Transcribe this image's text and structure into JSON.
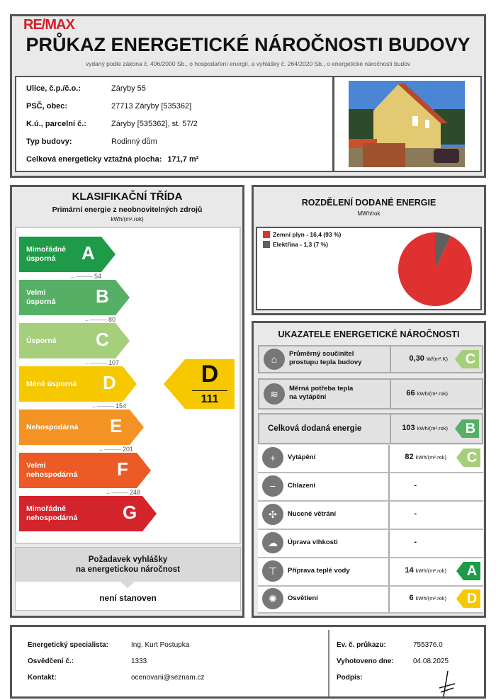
{
  "header": {
    "logo": "RE/MAX",
    "title": "PRŮKAZ ENERGETICKÉ NÁROČNOSTI BUDOVY",
    "subtitle": "vydaný podle zákona č. 406/2000 Sb., o hospodaření energií, a vyhlášky č. 264/2020 Sb., o energetické náročnosti budov"
  },
  "building": {
    "fields": [
      {
        "label": "Ulice, č.p./č.o.:",
        "value": "Záryby 55"
      },
      {
        "label": "PSČ, obec:",
        "value": "27713 Záryby [535362]"
      },
      {
        "label": "K.ú., parcelní č.:",
        "value": "Záryby [535362], st. 57/2"
      },
      {
        "label": "Typ budovy:",
        "value": "Rodinný dům"
      }
    ],
    "area_label": "Celková energeticky vztažná plocha:",
    "area_value": "171,7 m²",
    "photo": "house-photo"
  },
  "classification": {
    "title": "KLASIFIKAČNÍ TŘÍDA",
    "subtitle": "Primární energie z neobnovitelných zdrojů",
    "unit": "kWh/(m².rok)",
    "classes": [
      {
        "letter": "A",
        "label1": "Mimořádně",
        "label2": "úsporná",
        "color": "#1e9a48",
        "threshold": "54"
      },
      {
        "letter": "B",
        "label1": "Velmi",
        "label2": "úsporná",
        "color": "#55b065",
        "threshold": "80"
      },
      {
        "letter": "C",
        "label1": "Úsporná",
        "label2": "",
        "color": "#a6cf7b",
        "threshold": "107"
      },
      {
        "letter": "D",
        "label1": "Méně úsporná",
        "label2": "",
        "color": "#f5c800",
        "threshold": "154"
      },
      {
        "letter": "E",
        "label1": "Nehospodárná",
        "label2": "",
        "color": "#f39323",
        "threshold": "201"
      },
      {
        "letter": "F",
        "label1": "Velmi",
        "label2": "nehospodárná",
        "color": "#ec5a26",
        "threshold": "248"
      },
      {
        "letter": "G",
        "label1": "Mimořádně",
        "label2": "nehospodárná",
        "color": "#d3232b",
        "threshold": ""
      }
    ],
    "result": {
      "letter": "D",
      "value": "111",
      "color": "#f5c800"
    },
    "requirement_title1": "Požadavek vyhlášky",
    "requirement_title2": "na energetickou náročnost",
    "requirement_value": "není stanoven"
  },
  "distribution": {
    "title": "ROZDĚLENÍ DODANÉ ENERGIE",
    "unit": "MWh/rok",
    "chart_data": {
      "type": "pie",
      "series": [
        {
          "name": "Zemní plyn - 16,4 (93 %)",
          "value": 16.4,
          "percent": 93,
          "color": "#e03131"
        },
        {
          "name": "Elektřina - 1,3 (7 %)",
          "value": 1.3,
          "percent": 7,
          "color": "#5f5f5f"
        }
      ],
      "legend": "top-left"
    }
  },
  "indicators": {
    "title": "UKAZATELE ENERGETICKÉ NÁROČNOSTI",
    "rows": [
      {
        "icon": "house-icon",
        "label1": "Průměrný součinitel",
        "label2": "prostupu tepla budovy",
        "value": "0,30",
        "unit": "W/(m².K)",
        "class": "C",
        "color": "#a6cf7b"
      },
      {
        "icon": "heat-need-icon",
        "label1": "Měrná potřeba tepla",
        "label2": "na vytápění",
        "value": "66",
        "unit": "kWh/(m².rok)",
        "class": "",
        "color": ""
      },
      {
        "icon": "",
        "label1": "Celková dodaná energie",
        "label2": "",
        "value": "103",
        "unit": "kWh/(m².rok)",
        "class": "B",
        "color": "#55b065"
      },
      {
        "icon": "thermometer-plus-icon",
        "label1": "Vytápění",
        "label2": "",
        "value": "82",
        "unit": "kWh/(m².rok)",
        "class": "C",
        "color": "#a6cf7b"
      },
      {
        "icon": "thermometer-minus-icon",
        "label1": "Chlazení",
        "label2": "",
        "value": "-",
        "unit": "",
        "class": "",
        "color": ""
      },
      {
        "icon": "fan-icon",
        "label1": "Nucené větrání",
        "label2": "",
        "value": "-",
        "unit": "",
        "class": "",
        "color": ""
      },
      {
        "icon": "humidity-icon",
        "label1": "Úprava vlhkosti",
        "label2": "",
        "value": "-",
        "unit": "",
        "class": "",
        "color": ""
      },
      {
        "icon": "faucet-icon",
        "label1": "Příprava teplé vody",
        "label2": "",
        "value": "14",
        "unit": "kWh/(m².rok)",
        "class": "A",
        "color": "#1e9a48"
      },
      {
        "icon": "bulb-icon",
        "label1": "Osvětlení",
        "label2": "",
        "value": "6",
        "unit": "kWh/(m².rok)",
        "class": "D",
        "color": "#f5c800"
      }
    ]
  },
  "footer": {
    "specialist_label": "Energetický specialista:",
    "specialist": "Ing. Kurt Postupka",
    "cert_label": "Osvědčení č.:",
    "cert": "1333",
    "contact_label": "Kontakt:",
    "contact": "ocenovani@seznam.cz",
    "ev_label": "Ev. č. průkazu:",
    "ev": "755376.0",
    "date_label": "Vyhotoveno dne:",
    "date": "04.08.2025",
    "sign_label": "Podpis:"
  }
}
